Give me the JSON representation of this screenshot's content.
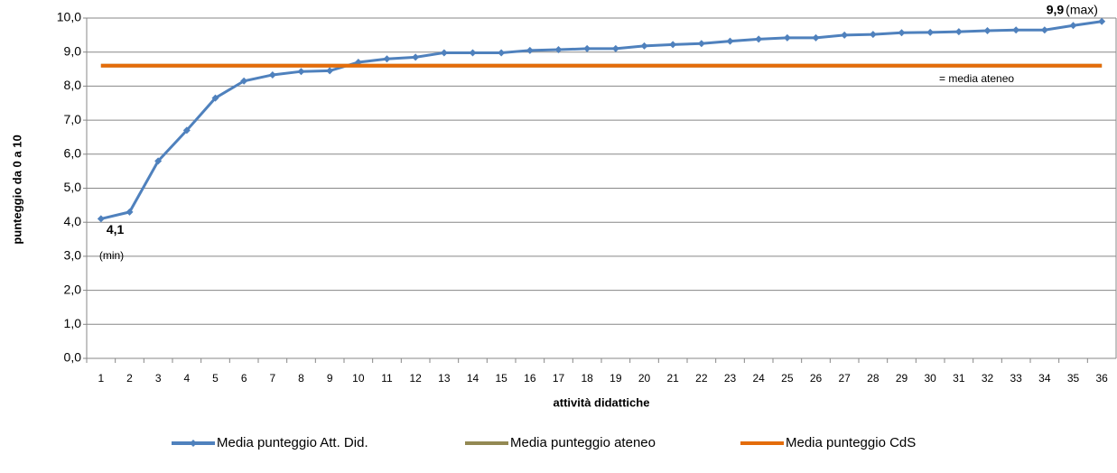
{
  "chart_data": {
    "type": "line",
    "x_label": "attività didattiche",
    "y_label": "punteggio da 0 a 10",
    "categories": [
      "1",
      "2",
      "3",
      "4",
      "5",
      "6",
      "7",
      "8",
      "9",
      "10",
      "11",
      "12",
      "13",
      "14",
      "15",
      "16",
      "17",
      "18",
      "19",
      "20",
      "21",
      "22",
      "23",
      "24",
      "25",
      "26",
      "27",
      "28",
      "29",
      "30",
      "31",
      "32",
      "33",
      "34",
      "35",
      "36"
    ],
    "series": [
      {
        "name": "Media punteggio Att. Did.",
        "color": "#4f81bd",
        "marker": true,
        "values": [
          4.1,
          4.3,
          5.8,
          6.7,
          7.65,
          8.15,
          8.33,
          8.43,
          8.45,
          8.7,
          8.8,
          8.85,
          8.98,
          8.98,
          8.98,
          9.05,
          9.07,
          9.1,
          9.1,
          9.18,
          9.22,
          9.25,
          9.32,
          9.38,
          9.42,
          9.42,
          9.5,
          9.52,
          9.57,
          9.58,
          9.6,
          9.63,
          9.65,
          9.65,
          9.78,
          9.9
        ],
        "value_labels": [
          "4,1",
          null,
          null,
          null,
          null,
          null,
          null,
          null,
          null,
          null,
          null,
          null,
          null,
          null,
          null,
          null,
          null,
          null,
          null,
          null,
          null,
          null,
          null,
          null,
          null,
          null,
          null,
          null,
          null,
          null,
          null,
          null,
          null,
          null,
          null,
          "9,9"
        ]
      },
      {
        "name": "Media punteggio ateneo",
        "color": "#938953",
        "marker": false,
        "values": [
          8.6,
          8.6,
          8.6,
          8.6,
          8.6,
          8.6,
          8.6,
          8.6,
          8.6,
          8.6,
          8.6,
          8.6,
          8.6,
          8.6,
          8.6,
          8.6,
          8.6,
          8.6,
          8.6,
          8.6,
          8.6,
          8.6,
          8.6,
          8.6,
          8.6,
          8.6,
          8.6,
          8.6,
          8.6,
          8.6,
          8.6,
          8.6,
          8.6,
          8.6,
          8.6,
          8.6
        ]
      },
      {
        "name": "Media punteggio CdS",
        "color": "#e46c0a",
        "marker": false,
        "values": [
          8.6,
          8.6,
          8.6,
          8.6,
          8.6,
          8.6,
          8.6,
          8.6,
          8.6,
          8.6,
          8.6,
          8.6,
          8.6,
          8.6,
          8.6,
          8.6,
          8.6,
          8.6,
          8.6,
          8.6,
          8.6,
          8.6,
          8.6,
          8.6,
          8.6,
          8.6,
          8.6,
          8.6,
          8.6,
          8.6,
          8.6,
          8.6,
          8.6,
          8.6,
          8.6,
          8.6
        ]
      }
    ],
    "annotations": {
      "min": "(min)",
      "max": "(max)",
      "ateneo": "= media ateneo"
    },
    "ylim": [
      0,
      10
    ],
    "yticks": [
      {
        "value": 0,
        "label": "0,0"
      },
      {
        "value": 1,
        "label": "1,0"
      },
      {
        "value": 2,
        "label": "2,0"
      },
      {
        "value": 3,
        "label": "3,0"
      },
      {
        "value": 4,
        "label": "4,0"
      },
      {
        "value": 5,
        "label": "5,0"
      },
      {
        "value": 6,
        "label": "6,0"
      },
      {
        "value": 7,
        "label": "7,0"
      },
      {
        "value": 8,
        "label": "8,0"
      },
      {
        "value": 9,
        "label": "9,0"
      },
      {
        "value": 10,
        "label": "10,0"
      }
    ],
    "grid": true
  }
}
